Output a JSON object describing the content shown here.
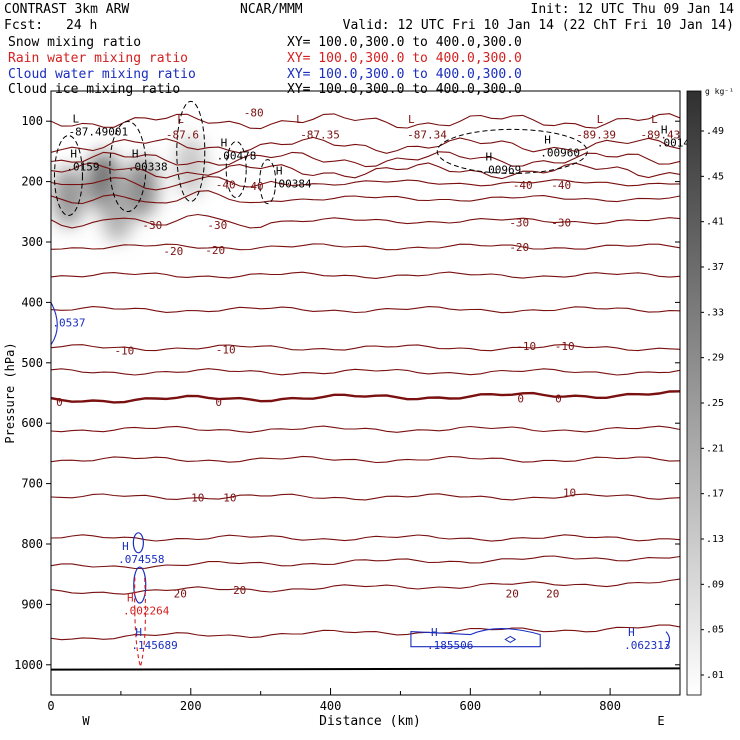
{
  "header": {
    "model": "CONTRAST  3km ARW",
    "center": "NCAR/MMM",
    "init": "Init: 12 UTC Thu 09 Jan 14",
    "fcst_label": "Fcst:",
    "fcst_value": "24 h",
    "valid": "Valid: 12 UTC Fri 10 Jan 14 (22 ChT Fri 10 Jan 14)"
  },
  "fields": [
    {
      "name": "Snow mixing ratio",
      "xy": "XY= 100.0,300.0 to 400.0,300.0",
      "color": "#000000"
    },
    {
      "name": "Rain water mixing ratio",
      "xy": "XY= 100.0,300.0 to 400.0,300.0",
      "color": "#d42020"
    },
    {
      "name": "Cloud water mixing ratio",
      "xy": "XY= 100.0,300.0 to 400.0,300.0",
      "color": "#1a2ec0"
    },
    {
      "name": "Cloud ice mixing ratio",
      "xy": "XY= 100.0,300.0 to 400.0,300.0",
      "color": "#000000"
    }
  ],
  "colors": {
    "temperature": "#7a1010",
    "rain": "#d42020",
    "cloud_water": "#1a2ec0",
    "cloud_ice": "#000000",
    "snow": "#555555"
  },
  "chart_data": {
    "type": "heatmap",
    "title": "",
    "xlabel": "Distance (km)",
    "ylabel": "Pressure (hPa)",
    "xlim": [
      0,
      900
    ],
    "ylim": [
      1050,
      50
    ],
    "x_ticks": [
      0,
      200,
      400,
      600,
      800
    ],
    "y_ticks": [
      100,
      200,
      300,
      400,
      500,
      600,
      700,
      800,
      900,
      1000
    ],
    "endpoints": {
      "left": "W",
      "right": "E"
    },
    "colorbar": {
      "unit": "g kg⁻¹",
      "labels": [
        ".01",
        ".05",
        ".09",
        ".13",
        ".17",
        ".21",
        ".25",
        ".29",
        ".33",
        ".37",
        ".41",
        ".45",
        ".49"
      ]
    },
    "isotherms": [
      {
        "pressure": 100,
        "value": -80,
        "shape": "wavy"
      },
      {
        "pressure": 140,
        "value": null,
        "shape": "wavy"
      },
      {
        "pressure": 163,
        "value": null,
        "shape": "wavy"
      },
      {
        "pressure": 182,
        "value": null,
        "shape": "wavy"
      },
      {
        "pressure": 202,
        "value": -40,
        "shape": "bump"
      },
      {
        "pressure": 228,
        "value": null,
        "shape": "bump"
      },
      {
        "pressure": 265,
        "value": -30,
        "shape": "bump"
      },
      {
        "pressure": 308,
        "value": -20,
        "shape": "flat"
      },
      {
        "pressure": 355,
        "value": null,
        "shape": "flat"
      },
      {
        "pressure": 412,
        "value": null,
        "shape": "flat"
      },
      {
        "pressure": 475,
        "value": -10,
        "shape": "flat"
      },
      {
        "pressure": 515,
        "value": null,
        "shape": "flat"
      },
      {
        "pressure": 562,
        "value": 0,
        "shape": "bold"
      },
      {
        "pressure": 610,
        "value": null,
        "shape": "flat"
      },
      {
        "pressure": 660,
        "value": null,
        "shape": "flat"
      },
      {
        "pressure": 722,
        "value": 10,
        "shape": "flat"
      },
      {
        "pressure": 790,
        "value": null,
        "shape": "flat"
      },
      {
        "pressure": 838,
        "value": null,
        "shape": "rise"
      },
      {
        "pressure": 880,
        "value": 20,
        "shape": "rise"
      },
      {
        "pressure": 955,
        "value": null,
        "shape": "rise"
      }
    ],
    "temperature_labels": [
      {
        "text": "-87.6",
        "x": 188,
        "p": 122
      },
      {
        "text": "-87.35",
        "x": 385,
        "p": 122
      },
      {
        "text": "-87.34",
        "x": 538,
        "p": 122
      },
      {
        "text": "-89.39",
        "x": 780,
        "p": 122
      },
      {
        "text": "-89.43",
        "x": 872,
        "p": 122
      },
      {
        "text": "-80",
        "x": 290,
        "p": 86
      },
      {
        "text": "-40",
        "x": 250,
        "p": 205
      },
      {
        "text": "-40",
        "x": 290,
        "p": 207
      },
      {
        "text": "-40",
        "x": 675,
        "p": 206
      },
      {
        "text": "-40",
        "x": 730,
        "p": 206
      },
      {
        "text": "-30",
        "x": 145,
        "p": 272
      },
      {
        "text": "-30",
        "x": 238,
        "p": 272
      },
      {
        "text": "-30",
        "x": 670,
        "p": 268
      },
      {
        "text": "-30",
        "x": 730,
        "p": 268
      },
      {
        "text": "-20",
        "x": 175,
        "p": 315
      },
      {
        "text": "-20",
        "x": 235,
        "p": 313
      },
      {
        "text": "-20",
        "x": 670,
        "p": 308
      },
      {
        "text": "-10",
        "x": 105,
        "p": 480
      },
      {
        "text": "-10",
        "x": 250,
        "p": 478
      },
      {
        "text": "-10",
        "x": 680,
        "p": 472
      },
      {
        "text": "-10",
        "x": 735,
        "p": 472
      },
      {
        "text": "0",
        "x": 12,
        "p": 565
      },
      {
        "text": "0",
        "x": 240,
        "p": 565
      },
      {
        "text": "0",
        "x": 672,
        "p": 559
      },
      {
        "text": "0",
        "x": 726,
        "p": 559
      },
      {
        "text": "10",
        "x": 210,
        "p": 723
      },
      {
        "text": "10",
        "x": 256,
        "p": 723
      },
      {
        "text": "10",
        "x": 742,
        "p": 715
      },
      {
        "text": "20",
        "x": 185,
        "p": 882
      },
      {
        "text": "20",
        "x": 270,
        "p": 876
      },
      {
        "text": "20",
        "x": 660,
        "p": 882
      },
      {
        "text": "20",
        "x": 718,
        "p": 882
      }
    ],
    "extrema": [
      {
        "label": "L",
        "value": "-87.49001",
        "x": 25,
        "p": 112,
        "color": "#000000"
      },
      {
        "label": "L",
        "value": "",
        "x": 175,
        "p": 113,
        "color": "#7a1010"
      },
      {
        "label": "L",
        "value": "",
        "x": 345,
        "p": 113,
        "color": "#7a1010"
      },
      {
        "label": "L",
        "value": "",
        "x": 505,
        "p": 113,
        "color": "#7a1010"
      },
      {
        "label": "L",
        "value": "",
        "x": 775,
        "p": 113,
        "color": "#7a1010"
      },
      {
        "label": "L",
        "value": "",
        "x": 853,
        "p": 113,
        "color": "#7a1010"
      },
      {
        "label": "H",
        "value": ".0159",
        "x": 22,
        "p": 170,
        "color": "#000000"
      },
      {
        "label": "H",
        "value": ".00338",
        "x": 110,
        "p": 170,
        "color": "#000000"
      },
      {
        "label": "H",
        "value": ".00478",
        "x": 237,
        "p": 152,
        "color": "#000000"
      },
      {
        "label": "H",
        "value": ".00384",
        "x": 316,
        "p": 198,
        "color": "#000000"
      },
      {
        "label": "H",
        "value": ".00969",
        "x": 616,
        "p": 175,
        "color": "#000000"
      },
      {
        "label": "H",
        "value": ".00960",
        "x": 700,
        "p": 147,
        "color": "#000000"
      },
      {
        "label": "H",
        "value": ".0014",
        "x": 867,
        "p": 130,
        "color": "#000000"
      },
      {
        "label": "H",
        "value": ".074558",
        "x": 96,
        "p": 820,
        "color": "#1a2ec0"
      },
      {
        "label": "H",
        "value": ".002264",
        "x": 103,
        "p": 905,
        "color": "#d42020"
      },
      {
        "label": "H",
        "value": ".145689",
        "x": 115,
        "p": 962,
        "color": "#1a2ec0"
      },
      {
        "label": "H",
        "value": ".185506",
        "x": 538,
        "p": 962,
        "color": "#1a2ec0"
      },
      {
        "label": "H",
        "value": ".062313",
        "x": 820,
        "p": 962,
        "color": "#1a2ec0"
      },
      {
        "label": "",
        "value": ".0537",
        "x": 2,
        "p": 428,
        "color": "#1a2ec0"
      }
    ],
    "snow_blobs": [
      {
        "x": 25,
        "p": 225,
        "intensity": 0.33
      },
      {
        "x": 75,
        "p": 200,
        "intensity": 0.45
      },
      {
        "x": 130,
        "p": 210,
        "intensity": 0.37
      },
      {
        "x": 95,
        "p": 250,
        "intensity": 0.25
      },
      {
        "x": 200,
        "p": 175,
        "intensity": 0.17
      }
    ]
  }
}
